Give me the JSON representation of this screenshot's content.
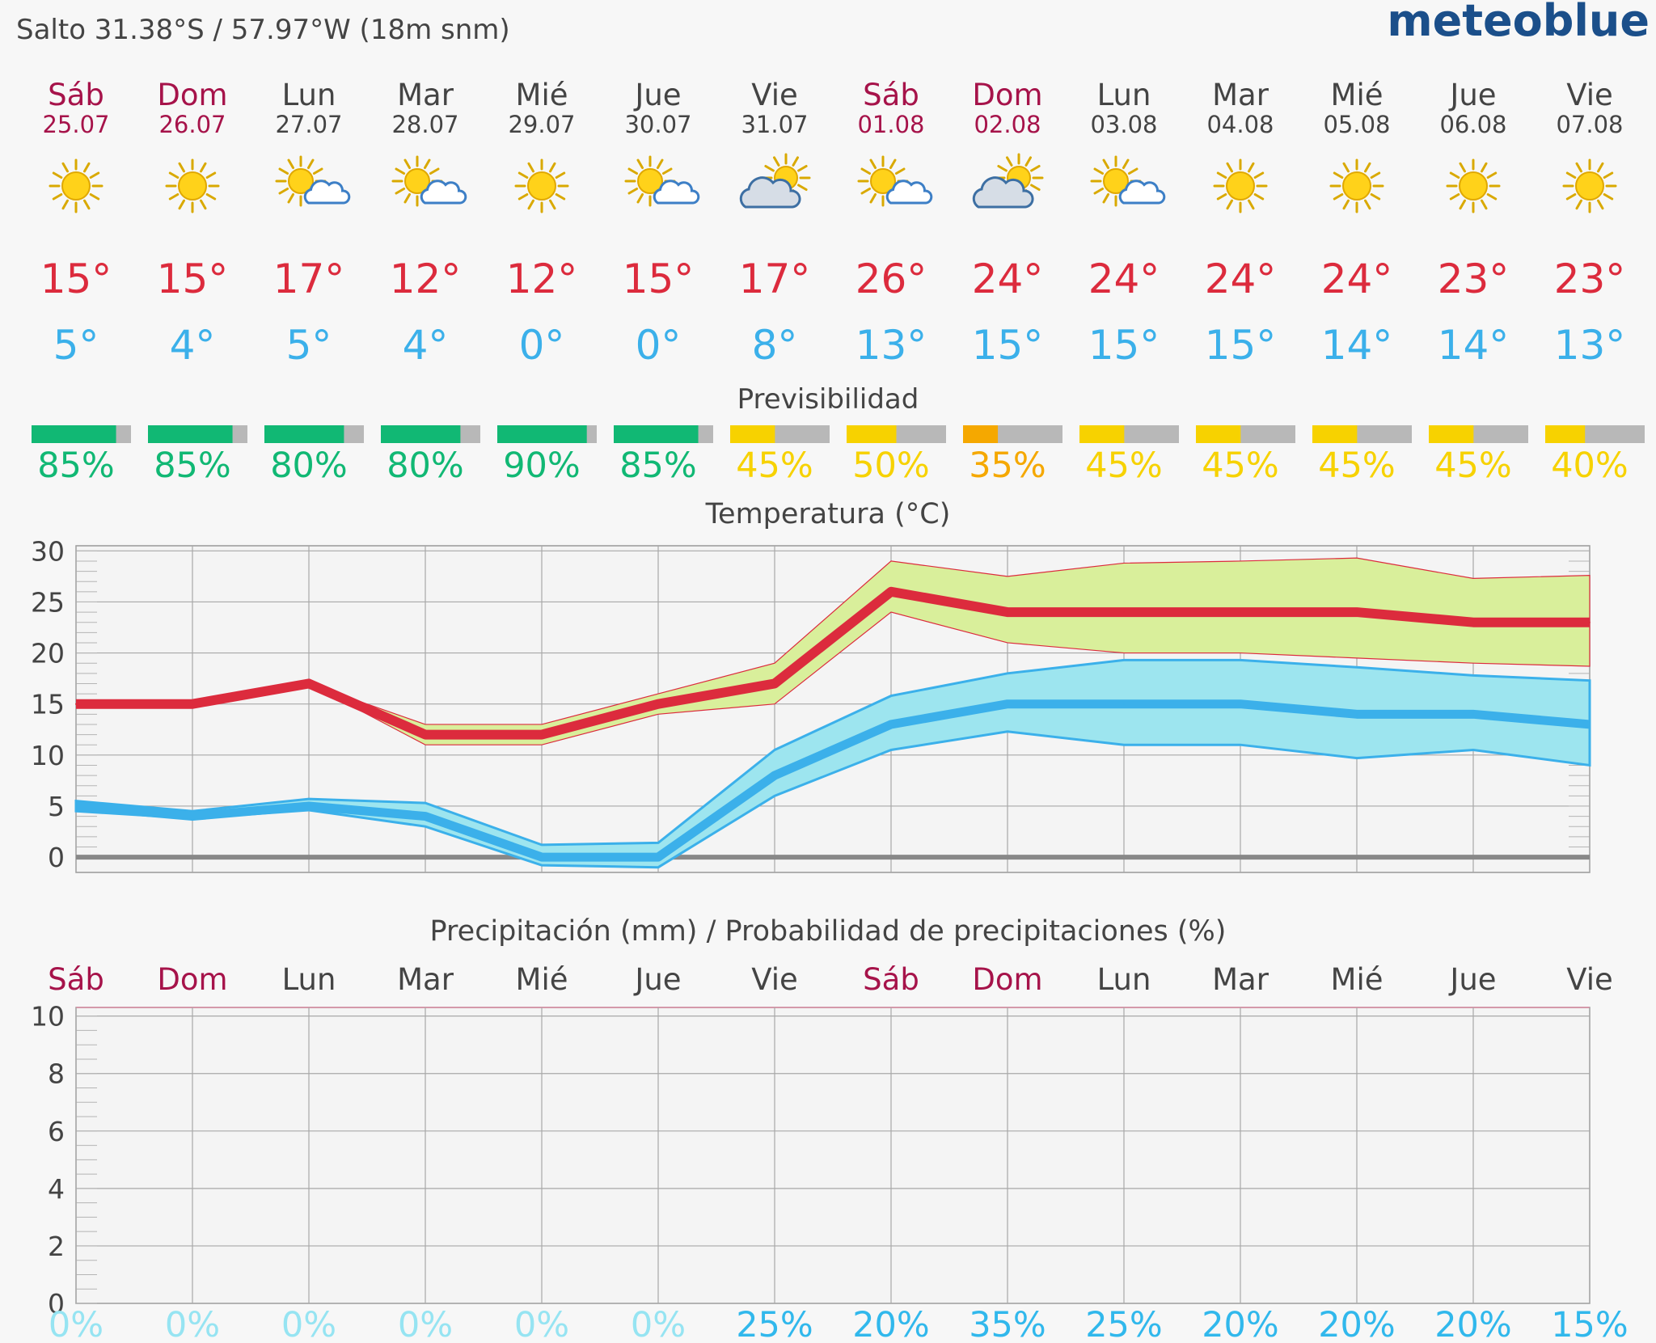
{
  "header": {
    "location": "Salto  31.38°S / 57.97°W (18m snm)",
    "brand": "meteoblue"
  },
  "colors": {
    "weekend": "#a6134a",
    "weekday": "#444444",
    "tmax": "#dc2b3d",
    "tmin": "#3bb0ea",
    "tmax_band": "#d9ef9b",
    "tmin_band": "#9de5ef",
    "good": "#11b874",
    "medium": "#f7d200",
    "low": "#f5a800",
    "bar_rest": "#b8b8b8",
    "prob_low": "#96e4f2",
    "prob_high": "#31b8ec",
    "zero_line": "#888888"
  },
  "days": [
    {
      "name": "Sáb",
      "date": "25.07",
      "weekend": true,
      "icon": "sun-icon",
      "tmax": "15°",
      "tmin": "5°",
      "predictability": "85%",
      "pred_value": 85,
      "pred_level": "good",
      "precip_prob": "0%",
      "prob_value": 0
    },
    {
      "name": "Dom",
      "date": "26.07",
      "weekend": true,
      "icon": "sun-icon",
      "tmax": "15°",
      "tmin": "4°",
      "predictability": "85%",
      "pred_value": 85,
      "pred_level": "good",
      "precip_prob": "0%",
      "prob_value": 0
    },
    {
      "name": "Lun",
      "date": "27.07",
      "weekend": false,
      "icon": "sun-cloud-icon",
      "tmax": "17°",
      "tmin": "5°",
      "predictability": "80%",
      "pred_value": 80,
      "pred_level": "good",
      "precip_prob": "0%",
      "prob_value": 0
    },
    {
      "name": "Mar",
      "date": "28.07",
      "weekend": false,
      "icon": "sun-cloud-icon",
      "tmax": "12°",
      "tmin": "4°",
      "predictability": "80%",
      "pred_value": 80,
      "pred_level": "good",
      "precip_prob": "0%",
      "prob_value": 0
    },
    {
      "name": "Mié",
      "date": "29.07",
      "weekend": false,
      "icon": "sun-icon",
      "tmax": "12°",
      "tmin": "0°",
      "predictability": "90%",
      "pred_value": 90,
      "pred_level": "good",
      "precip_prob": "0%",
      "prob_value": 0
    },
    {
      "name": "Jue",
      "date": "30.07",
      "weekend": false,
      "icon": "sun-cloud-icon",
      "tmax": "15°",
      "tmin": "0°",
      "predictability": "85%",
      "pred_value": 85,
      "pred_level": "good",
      "precip_prob": "0%",
      "prob_value": 0
    },
    {
      "name": "Vie",
      "date": "31.07",
      "weekend": false,
      "icon": "cloud-sun-icon",
      "tmax": "17°",
      "tmin": "8°",
      "predictability": "45%",
      "pred_value": 45,
      "pred_level": "medium",
      "precip_prob": "25%",
      "prob_value": 25
    },
    {
      "name": "Sáb",
      "date": "01.08",
      "weekend": true,
      "icon": "sun-cloud-icon",
      "tmax": "26°",
      "tmin": "13°",
      "predictability": "50%",
      "pred_value": 50,
      "pred_level": "medium",
      "precip_prob": "20%",
      "prob_value": 20
    },
    {
      "name": "Dom",
      "date": "02.08",
      "weekend": true,
      "icon": "cloud-sun-icon",
      "tmax": "24°",
      "tmin": "15°",
      "predictability": "35%",
      "pred_value": 35,
      "pred_level": "low",
      "precip_prob": "35%",
      "prob_value": 35
    },
    {
      "name": "Lun",
      "date": "03.08",
      "weekend": false,
      "icon": "sun-cloud-icon",
      "tmax": "24°",
      "tmin": "15°",
      "predictability": "45%",
      "pred_value": 45,
      "pred_level": "medium",
      "precip_prob": "25%",
      "prob_value": 25
    },
    {
      "name": "Mar",
      "date": "04.08",
      "weekend": false,
      "icon": "sun-icon",
      "tmax": "24°",
      "tmin": "15°",
      "predictability": "45%",
      "pred_value": 45,
      "pred_level": "medium",
      "precip_prob": "20%",
      "prob_value": 20
    },
    {
      "name": "Mié",
      "date": "05.08",
      "weekend": false,
      "icon": "sun-icon",
      "tmax": "24°",
      "tmin": "14°",
      "predictability": "45%",
      "pred_value": 45,
      "pred_level": "medium",
      "precip_prob": "20%",
      "prob_value": 20
    },
    {
      "name": "Jue",
      "date": "06.08",
      "weekend": false,
      "icon": "sun-icon",
      "tmax": "23°",
      "tmin": "14°",
      "predictability": "45%",
      "pred_value": 45,
      "pred_level": "medium",
      "precip_prob": "20%",
      "prob_value": 20
    },
    {
      "name": "Vie",
      "date": "07.08",
      "weekend": false,
      "icon": "sun-icon",
      "tmax": "23°",
      "tmin": "13°",
      "predictability": "40%",
      "pred_value": 40,
      "pred_level": "medium",
      "precip_prob": "15%",
      "prob_value": 15
    }
  ],
  "predictability_title": "Previsibilidad",
  "chart_data": [
    {
      "type": "line",
      "title": "Temperatura (°C)",
      "categories": [
        "Sáb",
        "Dom",
        "Lun",
        "Mar",
        "Mié",
        "Jue",
        "Vie",
        "Sáb",
        "Dom",
        "Lun",
        "Mar",
        "Mié",
        "Jue",
        "Vie"
      ],
      "ylim": [
        -1.5,
        30.5
      ],
      "yticks": [
        0,
        5,
        10,
        15,
        20,
        25,
        30
      ],
      "grid": true,
      "series": [
        {
          "role": "max",
          "values": [
            15,
            15,
            17,
            12,
            12,
            15,
            17,
            26,
            24,
            24,
            24,
            24,
            23,
            23
          ],
          "band_high": [
            15,
            15,
            17,
            13,
            13,
            16,
            19,
            29,
            27.5,
            28.8,
            29,
            29.3,
            27.3,
            27.6
          ],
          "band_low": [
            15,
            15,
            17,
            11,
            11,
            14,
            15,
            24,
            21,
            20,
            20,
            19.5,
            19,
            18.7
          ]
        },
        {
          "role": "min",
          "values": [
            5,
            4,
            5,
            4,
            0,
            0,
            8,
            13,
            15,
            15,
            15,
            14,
            14,
            13
          ],
          "band_high": [
            5.5,
            4.5,
            5.7,
            5.3,
            1.2,
            1.4,
            10.5,
            15.8,
            18,
            19.3,
            19.3,
            18.6,
            17.8,
            17.3
          ],
          "band_low": [
            4.5,
            3.8,
            4.6,
            3,
            -0.8,
            -1,
            6,
            10.5,
            12.3,
            11,
            11,
            9.7,
            10.5,
            9
          ]
        }
      ]
    },
    {
      "type": "bar",
      "title": "Precipitación (mm) / Probabilidad de precipitaciones (%)",
      "categories": [
        "Sáb",
        "Dom",
        "Lun",
        "Mar",
        "Mié",
        "Jue",
        "Vie",
        "Sáb",
        "Dom",
        "Lun",
        "Mar",
        "Mié",
        "Jue",
        "Vie"
      ],
      "values": [
        0,
        0,
        0,
        0,
        0,
        0,
        0,
        0,
        0,
        0,
        0,
        0,
        0,
        0
      ],
      "probability": [
        0,
        0,
        0,
        0,
        0,
        0,
        25,
        20,
        35,
        25,
        20,
        20,
        20,
        15
      ],
      "ylim": [
        0,
        10.3
      ],
      "yticks": [
        0,
        2,
        4,
        6,
        8,
        10
      ],
      "grid": true
    }
  ]
}
